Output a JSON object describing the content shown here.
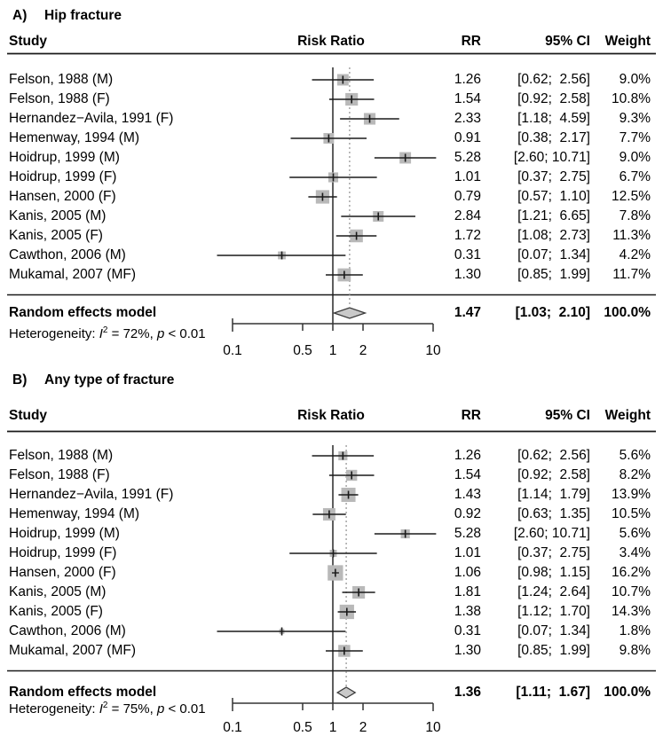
{
  "colors": {
    "text": "#000000",
    "square_fill": "#b9b9b9",
    "diamond_fill": "#c9c9c9",
    "diamond_stroke": "#3a3a3a",
    "ci_line": "#1a1a1a",
    "ref_line": "#1a1a1a",
    "dotted_line": "#8f8f8f",
    "rule": "#1a1a1a",
    "axis": "#333333"
  },
  "chart_data": [
    {
      "type": "forest",
      "panel_label": "A)",
      "title": "Hip fracture",
      "effect_measure": "Risk Ratio",
      "columns": {
        "study": "Study",
        "plot": "Risk Ratio",
        "rr": "RR",
        "ci": "95% CI",
        "weight": "Weight"
      },
      "x_axis": {
        "scale": "log",
        "range": [
          0.1,
          10
        ],
        "ticks": [
          0.1,
          0.5,
          1,
          2,
          10
        ],
        "tick_labels": [
          "0.1",
          "0.5",
          "1",
          "2",
          "10"
        ],
        "ref_line": 1
      },
      "studies": [
        {
          "study": "Felson, 1988 (M)",
          "rr": 1.26,
          "ci_low": 0.62,
          "ci_high": 2.56,
          "rr_text": "1.26",
          "ci_text": "[0.62;  2.56]",
          "weight_pct": 9.0,
          "weight_text": "9.0%"
        },
        {
          "study": "Felson, 1988 (F)",
          "rr": 1.54,
          "ci_low": 0.92,
          "ci_high": 2.58,
          "rr_text": "1.54",
          "ci_text": "[0.92;  2.58]",
          "weight_pct": 10.8,
          "weight_text": "10.8%"
        },
        {
          "study": "Hernandez−Avila, 1991 (F)",
          "rr": 2.33,
          "ci_low": 1.18,
          "ci_high": 4.59,
          "rr_text": "2.33",
          "ci_text": "[1.18;  4.59]",
          "weight_pct": 9.3,
          "weight_text": "9.3%"
        },
        {
          "study": "Hemenway, 1994 (M)",
          "rr": 0.91,
          "ci_low": 0.38,
          "ci_high": 2.17,
          "rr_text": "0.91",
          "ci_text": "[0.38;  2.17]",
          "weight_pct": 7.7,
          "weight_text": "7.7%"
        },
        {
          "study": "Hoidrup, 1999 (M)",
          "rr": 5.28,
          "ci_low": 2.6,
          "ci_high": 10.71,
          "rr_text": "5.28",
          "ci_text": "[2.60; 10.71]",
          "weight_pct": 9.0,
          "weight_text": "9.0%"
        },
        {
          "study": "Hoidrup, 1999 (F)",
          "rr": 1.01,
          "ci_low": 0.37,
          "ci_high": 2.75,
          "rr_text": "1.01",
          "ci_text": "[0.37;  2.75]",
          "weight_pct": 6.7,
          "weight_text": "6.7%"
        },
        {
          "study": "Hansen, 2000 (F)",
          "rr": 0.79,
          "ci_low": 0.57,
          "ci_high": 1.1,
          "rr_text": "0.79",
          "ci_text": "[0.57;  1.10]",
          "weight_pct": 12.5,
          "weight_text": "12.5%"
        },
        {
          "study": "Kanis, 2005 (M)",
          "rr": 2.84,
          "ci_low": 1.21,
          "ci_high": 6.65,
          "rr_text": "2.84",
          "ci_text": "[1.21;  6.65]",
          "weight_pct": 7.8,
          "weight_text": "7.8%"
        },
        {
          "study": "Kanis, 2005 (F)",
          "rr": 1.72,
          "ci_low": 1.08,
          "ci_high": 2.73,
          "rr_text": "1.72",
          "ci_text": "[1.08;  2.73]",
          "weight_pct": 11.3,
          "weight_text": "11.3%"
        },
        {
          "study": "Cawthon, 2006 (M)",
          "rr": 0.31,
          "ci_low": 0.07,
          "ci_high": 1.34,
          "rr_text": "0.31",
          "ci_text": "[0.07;  1.34]",
          "weight_pct": 4.2,
          "weight_text": "4.2%"
        },
        {
          "study": "Mukamal, 2007 (MF)",
          "rr": 1.3,
          "ci_low": 0.85,
          "ci_high": 1.99,
          "rr_text": "1.30",
          "ci_text": "[0.85;  1.99]",
          "weight_pct": 11.7,
          "weight_text": "11.7%"
        }
      ],
      "summary": {
        "study": "Random effects model",
        "rr": 1.47,
        "ci_low": 1.03,
        "ci_high": 2.1,
        "rr_text": "1.47",
        "ci_text": "[1.03;  2.10]",
        "weight_text": "100.0%"
      },
      "heterogeneity": {
        "label": "Heterogeneity:",
        "i_symbol": "I",
        "i_sup": "2",
        "i_value": "= 72%,",
        "p_symbol": "p",
        "p_value": "< 0.01"
      }
    },
    {
      "type": "forest",
      "panel_label": "B)",
      "title": "Any type of fracture",
      "effect_measure": "Risk Ratio",
      "columns": {
        "study": "Study",
        "plot": "Risk Ratio",
        "rr": "RR",
        "ci": "95% CI",
        "weight": "Weight"
      },
      "x_axis": {
        "scale": "log",
        "range": [
          0.1,
          10
        ],
        "ticks": [
          0.1,
          0.5,
          1,
          2,
          10
        ],
        "tick_labels": [
          "0.1",
          "0.5",
          "1",
          "2",
          "10"
        ],
        "ref_line": 1
      },
      "studies": [
        {
          "study": "Felson, 1988 (M)",
          "rr": 1.26,
          "ci_low": 0.62,
          "ci_high": 2.56,
          "rr_text": "1.26",
          "ci_text": "[0.62;  2.56]",
          "weight_pct": 5.6,
          "weight_text": "5.6%"
        },
        {
          "study": "Felson, 1988 (F)",
          "rr": 1.54,
          "ci_low": 0.92,
          "ci_high": 2.58,
          "rr_text": "1.54",
          "ci_text": "[0.92;  2.58]",
          "weight_pct": 8.2,
          "weight_text": "8.2%"
        },
        {
          "study": "Hernandez−Avila, 1991 (F)",
          "rr": 1.43,
          "ci_low": 1.14,
          "ci_high": 1.79,
          "rr_text": "1.43",
          "ci_text": "[1.14;  1.79]",
          "weight_pct": 13.9,
          "weight_text": "13.9%"
        },
        {
          "study": "Hemenway, 1994 (M)",
          "rr": 0.92,
          "ci_low": 0.63,
          "ci_high": 1.35,
          "rr_text": "0.92",
          "ci_text": "[0.63;  1.35]",
          "weight_pct": 10.5,
          "weight_text": "10.5%"
        },
        {
          "study": "Hoidrup, 1999 (M)",
          "rr": 5.28,
          "ci_low": 2.6,
          "ci_high": 10.71,
          "rr_text": "5.28",
          "ci_text": "[2.60; 10.71]",
          "weight_pct": 5.6,
          "weight_text": "5.6%"
        },
        {
          "study": "Hoidrup, 1999 (F)",
          "rr": 1.01,
          "ci_low": 0.37,
          "ci_high": 2.75,
          "rr_text": "1.01",
          "ci_text": "[0.37;  2.75]",
          "weight_pct": 3.4,
          "weight_text": "3.4%"
        },
        {
          "study": "Hansen, 2000 (F)",
          "rr": 1.06,
          "ci_low": 0.98,
          "ci_high": 1.15,
          "rr_text": "1.06",
          "ci_text": "[0.98;  1.15]",
          "weight_pct": 16.2,
          "weight_text": "16.2%"
        },
        {
          "study": "Kanis, 2005 (M)",
          "rr": 1.81,
          "ci_low": 1.24,
          "ci_high": 2.64,
          "rr_text": "1.81",
          "ci_text": "[1.24;  2.64]",
          "weight_pct": 10.7,
          "weight_text": "10.7%"
        },
        {
          "study": "Kanis, 2005 (F)",
          "rr": 1.38,
          "ci_low": 1.12,
          "ci_high": 1.7,
          "rr_text": "1.38",
          "ci_text": "[1.12;  1.70]",
          "weight_pct": 14.3,
          "weight_text": "14.3%"
        },
        {
          "study": "Cawthon, 2006 (M)",
          "rr": 0.31,
          "ci_low": 0.07,
          "ci_high": 1.34,
          "rr_text": "0.31",
          "ci_text": "[0.07;  1.34]",
          "weight_pct": 1.8,
          "weight_text": "1.8%"
        },
        {
          "study": "Mukamal, 2007 (MF)",
          "rr": 1.3,
          "ci_low": 0.85,
          "ci_high": 1.99,
          "rr_text": "1.30",
          "ci_text": "[0.85;  1.99]",
          "weight_pct": 9.8,
          "weight_text": "9.8%"
        }
      ],
      "summary": {
        "study": "Random effects model",
        "rr": 1.36,
        "ci_low": 1.11,
        "ci_high": 1.67,
        "rr_text": "1.36",
        "ci_text": "[1.11;  1.67]",
        "weight_text": "100.0%"
      },
      "heterogeneity": {
        "label": "Heterogeneity:",
        "i_symbol": "I",
        "i_sup": "2",
        "i_value": "= 75%,",
        "p_symbol": "p",
        "p_value": "< 0.01"
      }
    }
  ]
}
